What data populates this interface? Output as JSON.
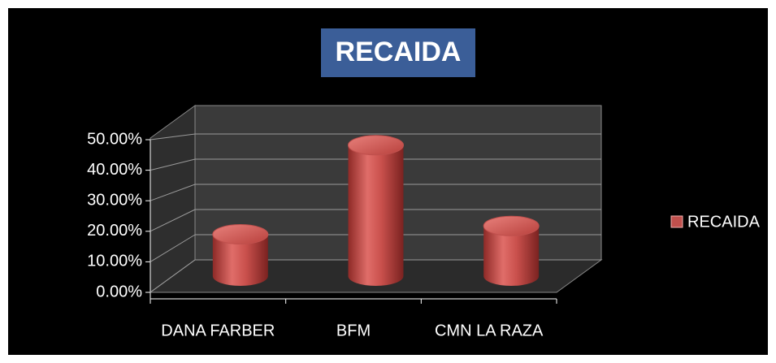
{
  "chart_data": {
    "type": "bar",
    "title": "RECAIDA",
    "categories": [
      "DANA FARBER",
      "BFM",
      "CMN LA RAZA"
    ],
    "series": [
      {
        "name": "RECAIDA",
        "color": "#c0504d",
        "values": [
          15,
          47,
          18
        ]
      }
    ],
    "ylim": [
      0,
      50
    ],
    "yticks": [
      {
        "value": 0,
        "label": "0.00%"
      },
      {
        "value": 10,
        "label": "10.00%"
      },
      {
        "value": 20,
        "label": "20.00%"
      },
      {
        "value": 30,
        "label": "30.00%"
      },
      {
        "value": 40,
        "label": "40.00%"
      },
      {
        "value": 50,
        "label": "50.00%"
      }
    ],
    "grid": true,
    "legend": "right"
  }
}
